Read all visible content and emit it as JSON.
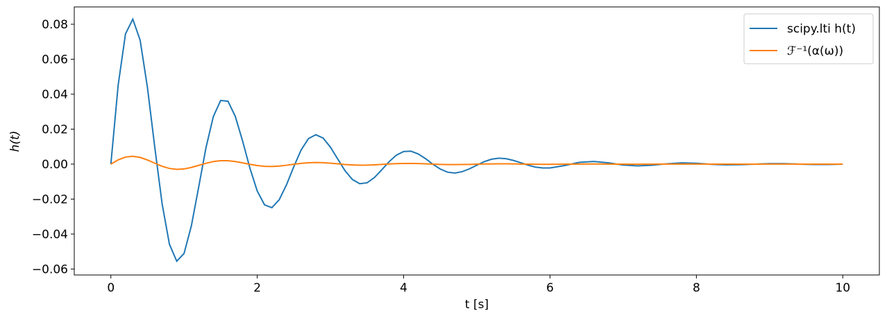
{
  "chart_data": {
    "type": "line",
    "xlabel": "t [s]",
    "ylabel": "h(t)",
    "x": [
      0,
      0.1,
      0.2,
      0.3,
      0.4,
      0.5,
      0.6,
      0.7,
      0.8,
      0.9,
      1.0,
      1.1,
      1.2,
      1.3,
      1.4,
      1.5,
      1.6,
      1.7,
      1.8,
      1.9,
      2.0,
      2.1,
      2.2,
      2.3,
      2.4,
      2.5,
      2.6,
      2.7,
      2.8,
      2.9,
      3.0,
      3.1,
      3.2,
      3.3,
      3.4,
      3.5,
      3.6,
      3.7,
      3.8,
      3.9,
      4.0,
      4.1,
      4.2,
      4.3,
      4.4,
      4.5,
      4.6,
      4.7,
      4.8,
      4.9,
      5.0,
      5.1,
      5.2,
      5.3,
      5.4,
      5.5,
      5.6,
      5.7,
      5.8,
      5.9,
      6.0,
      6.2,
      6.4,
      6.6,
      6.8,
      7.0,
      7.2,
      7.4,
      7.6,
      7.8,
      8.0,
      8.2,
      8.4,
      8.6,
      8.8,
      9.0,
      9.2,
      9.4,
      9.6,
      9.8,
      10
    ],
    "series": [
      {
        "name": "scipy.lti h(t)",
        "color": "#1f77b4",
        "values": [
          0,
          0.0452,
          0.0745,
          0.0829,
          0.0709,
          0.0438,
          0.0097,
          -0.0226,
          -0.0458,
          -0.0555,
          -0.0511,
          -0.0353,
          -0.0131,
          0.0095,
          0.0272,
          0.0364,
          0.036,
          0.0273,
          0.0132,
          -0.0023,
          -0.0154,
          -0.0233,
          -0.0249,
          -0.0204,
          -0.0118,
          -0.0014,
          0.0081,
          0.0146,
          0.0168,
          0.0149,
          0.0097,
          0.0029,
          -0.0038,
          -0.0088,
          -0.0112,
          -0.0107,
          -0.0077,
          -0.0033,
          0.0013,
          0.0051,
          0.0072,
          0.0074,
          0.0058,
          0.0031,
          -0.0001,
          -0.0028,
          -0.0046,
          -0.0051,
          -0.0043,
          -0.0027,
          -0.0006,
          0.0014,
          0.0028,
          0.0034,
          0.0031,
          0.0021,
          0.0008,
          -0.0006,
          -0.0017,
          -0.0022,
          -0.0022,
          -0.0008,
          0.001,
          0.0015,
          0.0007,
          -0.0005,
          -0.001,
          -0.0006,
          0.0002,
          0.0007,
          0.0005,
          -0.0001,
          -0.0004,
          -0.0003,
          0,
          0.0003,
          0.0003,
          0,
          -0.0002,
          -0.0002,
          0
        ]
      },
      {
        "name": "ℱ⁻¹(α(ω))",
        "color": "#ff7f0e",
        "values": [
          0,
          0.00244,
          0.00402,
          0.00448,
          0.00383,
          0.00237,
          0.00052,
          -0.00122,
          -0.00247,
          -0.003,
          -0.00276,
          -0.00191,
          -0.00071,
          0.00051,
          0.00147,
          0.00197,
          0.00194,
          0.00147,
          0.00071,
          -0.00012,
          -0.00083,
          -0.00126,
          -0.00134,
          -0.0011,
          -0.00064,
          -8e-05,
          0.00044,
          0.00079,
          0.00091,
          0.0008,
          0.00052,
          0.00016,
          -0.00021,
          -0.00048,
          -0.0006,
          -0.00058,
          -0.00042,
          -0.00018,
          7e-05,
          0.00028,
          0.00039,
          0.0004,
          0.00031,
          0.00017,
          -1e-05,
          -0.00015,
          -0.00025,
          -0.00028,
          -0.00023,
          -0.00015,
          -3e-05,
          8e-05,
          0.00015,
          0.00018,
          0.00017,
          0.00011,
          4e-05,
          -3e-05,
          -9e-05,
          -0.00012,
          -0.00012,
          -4e-05,
          5e-05,
          8e-05,
          4e-05,
          -3e-05,
          -5e-05,
          -3e-05,
          1e-05,
          4e-05,
          3e-05,
          -1e-05,
          -2e-05,
          -2e-05,
          0,
          2e-05,
          2e-05,
          0,
          -1e-05,
          -1e-05,
          0
        ]
      }
    ],
    "xlim": [
      -0.5,
      10.5
    ],
    "xticks": [
      0,
      2,
      4,
      6,
      8,
      10
    ],
    "ylim": [
      -0.0634,
      0.0899
    ],
    "yticks": [
      {
        "value": -0.06,
        "label": "−0.06"
      },
      {
        "value": -0.04,
        "label": "−0.04"
      },
      {
        "value": -0.02,
        "label": "−0.02"
      },
      {
        "value": 0,
        "label": "0.00"
      },
      {
        "value": 0.02,
        "label": "0.02"
      },
      {
        "value": 0.04,
        "label": "0.04"
      },
      {
        "value": 0.06,
        "label": "0.06"
      },
      {
        "value": 0.08,
        "label": "0.08"
      }
    ],
    "grid": false,
    "legend": "upper right"
  }
}
